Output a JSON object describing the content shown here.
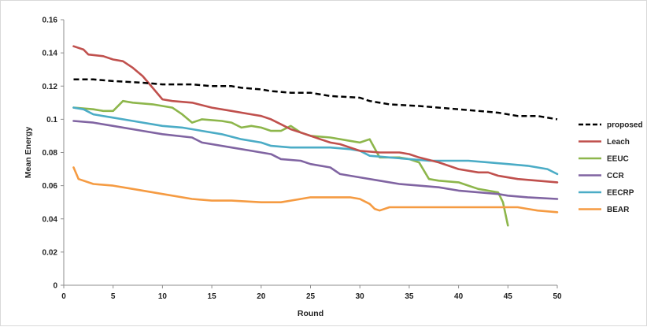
{
  "chart_data": {
    "type": "line",
    "title": "",
    "xlabel": "Round",
    "ylabel": "Mean Energy",
    "xlim": [
      0,
      50
    ],
    "ylim": [
      0,
      0.16
    ],
    "x_ticks": [
      "0",
      "5",
      "10",
      "15",
      "20",
      "25",
      "30",
      "35",
      "40",
      "45",
      "50"
    ],
    "y_ticks": [
      "0",
      "0.02",
      "0.04",
      "0.06",
      "0.08",
      "0.1",
      "0.12",
      "0.14",
      "0.16"
    ],
    "grid": false,
    "legend_position": "right",
    "series": [
      {
        "name": "proposed",
        "color": "#000000",
        "dash": true,
        "points": [
          [
            1,
            0.124
          ],
          [
            3,
            0.124
          ],
          [
            5,
            0.123
          ],
          [
            8,
            0.122
          ],
          [
            10,
            0.121
          ],
          [
            13,
            0.121
          ],
          [
            15,
            0.12
          ],
          [
            17,
            0.12
          ],
          [
            18,
            0.119
          ],
          [
            20,
            0.118
          ],
          [
            21,
            0.117
          ],
          [
            23,
            0.116
          ],
          [
            25,
            0.116
          ],
          [
            27,
            0.114
          ],
          [
            30,
            0.113
          ],
          [
            31,
            0.111
          ],
          [
            33,
            0.109
          ],
          [
            36,
            0.108
          ],
          [
            38,
            0.107
          ],
          [
            40,
            0.106
          ],
          [
            42,
            0.105
          ],
          [
            44,
            0.104
          ],
          [
            46,
            0.102
          ],
          [
            48,
            0.102
          ],
          [
            50,
            0.1
          ]
        ]
      },
      {
        "name": "Leach",
        "color": "#c0504d",
        "dash": false,
        "points": [
          [
            1,
            0.144
          ],
          [
            2,
            0.142
          ],
          [
            2.5,
            0.139
          ],
          [
            4,
            0.138
          ],
          [
            5,
            0.136
          ],
          [
            6,
            0.135
          ],
          [
            7,
            0.131
          ],
          [
            8,
            0.126
          ],
          [
            9,
            0.119
          ],
          [
            10,
            0.112
          ],
          [
            11,
            0.111
          ],
          [
            13,
            0.11
          ],
          [
            15,
            0.107
          ],
          [
            17,
            0.105
          ],
          [
            19,
            0.103
          ],
          [
            20,
            0.102
          ],
          [
            21,
            0.1
          ],
          [
            22,
            0.097
          ],
          [
            23,
            0.094
          ],
          [
            24,
            0.092
          ],
          [
            25,
            0.09
          ],
          [
            26,
            0.088
          ],
          [
            27,
            0.086
          ],
          [
            28,
            0.085
          ],
          [
            29,
            0.083
          ],
          [
            30,
            0.081
          ],
          [
            32,
            0.08
          ],
          [
            34,
            0.08
          ],
          [
            35,
            0.079
          ],
          [
            36,
            0.077
          ],
          [
            38,
            0.074
          ],
          [
            39,
            0.072
          ],
          [
            40,
            0.07
          ],
          [
            42,
            0.068
          ],
          [
            43,
            0.068
          ],
          [
            44,
            0.066
          ],
          [
            46,
            0.064
          ],
          [
            48,
            0.063
          ],
          [
            50,
            0.062
          ]
        ]
      },
      {
        "name": "EEUC",
        "color": "#8db64b",
        "dash": false,
        "points": [
          [
            1,
            0.107
          ],
          [
            3,
            0.106
          ],
          [
            4,
            0.105
          ],
          [
            5,
            0.105
          ],
          [
            6,
            0.111
          ],
          [
            7,
            0.11
          ],
          [
            9,
            0.109
          ],
          [
            11,
            0.107
          ],
          [
            12,
            0.103
          ],
          [
            13,
            0.098
          ],
          [
            14,
            0.1
          ],
          [
            16,
            0.099
          ],
          [
            17,
            0.098
          ],
          [
            18,
            0.095
          ],
          [
            19,
            0.096
          ],
          [
            20,
            0.095
          ],
          [
            21,
            0.093
          ],
          [
            22,
            0.093
          ],
          [
            23,
            0.096
          ],
          [
            24,
            0.092
          ],
          [
            25,
            0.09
          ],
          [
            27,
            0.089
          ],
          [
            29,
            0.087
          ],
          [
            30,
            0.086
          ],
          [
            31,
            0.088
          ],
          [
            32,
            0.077
          ],
          [
            34,
            0.077
          ],
          [
            35,
            0.076
          ],
          [
            36,
            0.074
          ],
          [
            37,
            0.064
          ],
          [
            38,
            0.063
          ],
          [
            40,
            0.062
          ],
          [
            41,
            0.06
          ],
          [
            42,
            0.058
          ],
          [
            44,
            0.056
          ],
          [
            44.5,
            0.05
          ],
          [
            45,
            0.036
          ]
        ]
      },
      {
        "name": "CCR",
        "color": "#8064a2",
        "dash": false,
        "points": [
          [
            1,
            0.099
          ],
          [
            3,
            0.098
          ],
          [
            5,
            0.096
          ],
          [
            8,
            0.093
          ],
          [
            10,
            0.091
          ],
          [
            13,
            0.089
          ],
          [
            14,
            0.086
          ],
          [
            17,
            0.083
          ],
          [
            19,
            0.081
          ],
          [
            20,
            0.08
          ],
          [
            21,
            0.079
          ],
          [
            22,
            0.076
          ],
          [
            24,
            0.075
          ],
          [
            25,
            0.073
          ],
          [
            27,
            0.071
          ],
          [
            28,
            0.067
          ],
          [
            30,
            0.065
          ],
          [
            32,
            0.063
          ],
          [
            34,
            0.061
          ],
          [
            36,
            0.06
          ],
          [
            38,
            0.059
          ],
          [
            40,
            0.057
          ],
          [
            42,
            0.056
          ],
          [
            44,
            0.055
          ],
          [
            45,
            0.054
          ],
          [
            47,
            0.053
          ],
          [
            50,
            0.052
          ]
        ]
      },
      {
        "name": "EECRP",
        "color": "#4bacc6",
        "dash": false,
        "points": [
          [
            1,
            0.107
          ],
          [
            2,
            0.106
          ],
          [
            3,
            0.103
          ],
          [
            5,
            0.101
          ],
          [
            7,
            0.099
          ],
          [
            10,
            0.096
          ],
          [
            12,
            0.095
          ],
          [
            14,
            0.093
          ],
          [
            16,
            0.091
          ],
          [
            18,
            0.088
          ],
          [
            20,
            0.086
          ],
          [
            21,
            0.084
          ],
          [
            23,
            0.083
          ],
          [
            25,
            0.083
          ],
          [
            27,
            0.083
          ],
          [
            29,
            0.082
          ],
          [
            30,
            0.081
          ],
          [
            31,
            0.078
          ],
          [
            33,
            0.077
          ],
          [
            35,
            0.076
          ],
          [
            37,
            0.075
          ],
          [
            39,
            0.075
          ],
          [
            41,
            0.075
          ],
          [
            43,
            0.074
          ],
          [
            45,
            0.073
          ],
          [
            47,
            0.072
          ],
          [
            49,
            0.07
          ],
          [
            50,
            0.067
          ]
        ]
      },
      {
        "name": "BEAR",
        "color": "#f59b42",
        "dash": false,
        "points": [
          [
            1,
            0.071
          ],
          [
            1.5,
            0.064
          ],
          [
            3,
            0.061
          ],
          [
            5,
            0.06
          ],
          [
            7,
            0.058
          ],
          [
            10,
            0.055
          ],
          [
            13,
            0.052
          ],
          [
            15,
            0.051
          ],
          [
            17,
            0.051
          ],
          [
            20,
            0.05
          ],
          [
            22,
            0.05
          ],
          [
            24,
            0.052
          ],
          [
            25,
            0.053
          ],
          [
            27,
            0.053
          ],
          [
            29,
            0.053
          ],
          [
            30,
            0.052
          ],
          [
            31,
            0.049
          ],
          [
            31.5,
            0.046
          ],
          [
            32,
            0.045
          ],
          [
            33,
            0.047
          ],
          [
            35,
            0.047
          ],
          [
            37,
            0.047
          ],
          [
            40,
            0.047
          ],
          [
            42,
            0.047
          ],
          [
            44,
            0.047
          ],
          [
            46,
            0.047
          ],
          [
            47,
            0.046
          ],
          [
            48,
            0.045
          ],
          [
            50,
            0.044
          ]
        ]
      }
    ]
  }
}
